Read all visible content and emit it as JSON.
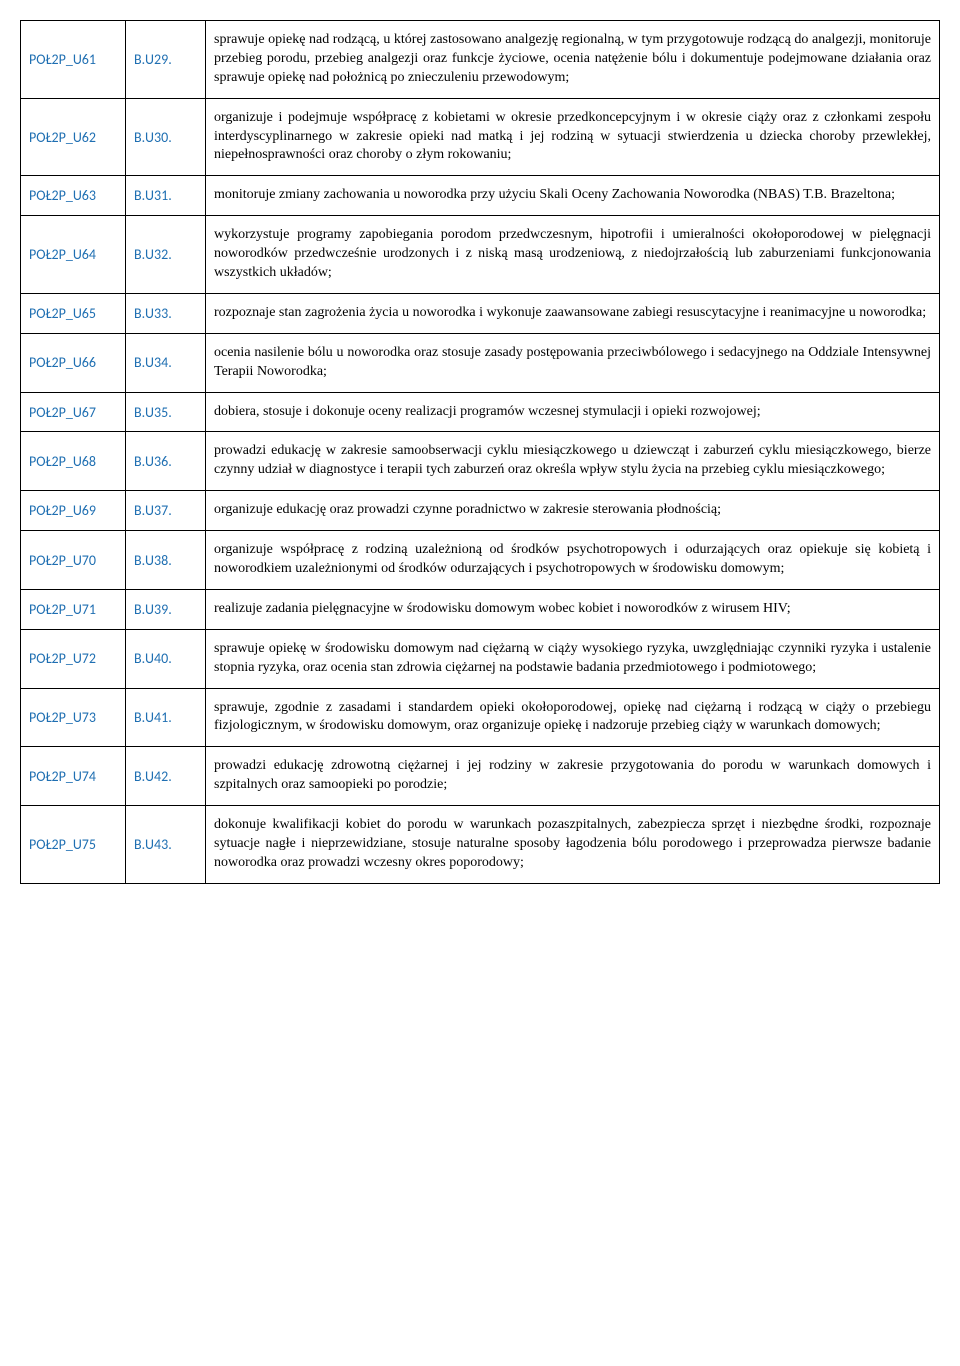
{
  "table": {
    "rows": [
      {
        "id": "POŁ2P_U61",
        "code": "B.U29.",
        "desc": "sprawuje opiekę nad rodzącą, u której zastosowano analgezję regionalną, w tym przygotowuje rodzącą do analgezji, monitoruje przebieg porodu, przebieg analgezji oraz funkcje życiowe, ocenia natężenie bólu i dokumentuje podejmowane działania oraz sprawuje opiekę nad położnicą po znieczuleniu przewodowym;"
      },
      {
        "id": "POŁ2P_U62",
        "code": "B.U30.",
        "desc": "organizuje i podejmuje współpracę z kobietami w okresie przedkoncepcyjnym i w okresie ciąży oraz z członkami zespołu interdyscyplinarnego w zakresie opieki nad matką i jej rodziną w sytuacji stwierdzenia u dziecka choroby przewlekłej, niepełnosprawności oraz choroby o złym rokowaniu;"
      },
      {
        "id": "POŁ2P_U63",
        "code": "B.U31.",
        "desc": "monitoruje zmiany zachowania u noworodka przy użyciu Skali Oceny Zachowania Noworodka (NBAS) T.B. Brazeltona;"
      },
      {
        "id": "POŁ2P_U64",
        "code": "B.U32.",
        "desc": "wykorzystuje programy zapobiegania porodom przedwczesnym, hipotrofii i umieralności okołoporodowej w pielęgnacji noworodków przedwcześnie urodzonych i z niską masą urodzeniową, z niedojrzałością lub zaburzeniami funkcjonowania wszystkich układów;"
      },
      {
        "id": "POŁ2P_U65",
        "code": "B.U33.",
        "desc": "rozpoznaje stan zagrożenia życia u noworodka i wykonuje zaawansowane zabiegi resuscytacyjne i reanimacyjne u noworodka;"
      },
      {
        "id": "POŁ2P_U66",
        "code": "B.U34.",
        "desc": "ocenia nasilenie bólu u noworodka oraz stosuje zasady postępowania przeciwbólowego i sedacyjnego na Oddziale Intensywnej Terapii Noworodka;"
      },
      {
        "id": "POŁ2P_U67",
        "code": "B.U35.",
        "desc": "dobiera, stosuje i dokonuje oceny realizacji programów wczesnej stymulacji i opieki rozwojowej;"
      },
      {
        "id": "POŁ2P_U68",
        "code": "B.U36.",
        "desc": "prowadzi edukację w zakresie samoobserwacji cyklu miesiączkowego u dziewcząt i zaburzeń cyklu miesiączkowego, bierze czynny udział w diagnostyce i terapii tych zaburzeń oraz określa wpływ stylu życia na przebieg cyklu miesiączkowego;"
      },
      {
        "id": "POŁ2P_U69",
        "code": "B.U37.",
        "desc": "organizuje edukację oraz prowadzi czynne poradnictwo w zakresie sterowania płodnością;"
      },
      {
        "id": "POŁ2P_U70",
        "code": "B.U38.",
        "desc": "organizuje współpracę z rodziną uzależnioną od środków psychotropowych i odurzających oraz opiekuje się kobietą i noworodkiem uzależnionymi od środków odurzających i psychotropowych w środowisku domowym;"
      },
      {
        "id": "POŁ2P_U71",
        "code": "B.U39.",
        "desc": "realizuje zadania pielęgnacyjne w środowisku domowym wobec kobiet i noworodków z wirusem HIV;"
      },
      {
        "id": "POŁ2P_U72",
        "code": "B.U40.",
        "desc": "sprawuje opiekę w środowisku domowym nad ciężarną w ciąży wysokiego ryzyka, uwzględniając czynniki ryzyka i ustalenie stopnia ryzyka, oraz ocenia stan zdrowia ciężarnej na podstawie badania przedmiotowego i podmiotowego;"
      },
      {
        "id": "POŁ2P_U73",
        "code": "B.U41.",
        "desc": "sprawuje, zgodnie z zasadami i standardem opieki okołoporodowej, opiekę nad ciężarną i rodzącą w ciąży o przebiegu fizjologicznym, w środowisku domowym, oraz organizuje opiekę i nadzoruje przebieg ciąży w warunkach domowych;"
      },
      {
        "id": "POŁ2P_U74",
        "code": "B.U42.",
        "desc": "prowadzi edukację zdrowotną ciężarnej i jej rodziny w zakresie przygotowania do porodu w warunkach domowych i szpitalnych oraz samoopieki po porodzie;"
      },
      {
        "id": "POŁ2P_U75",
        "code": "B.U43.",
        "desc": "dokonuje kwalifikacji kobiet do porodu w warunkach pozaszpitalnych, zabezpiecza sprzęt i niezbędne środki, rozpoznaje sytuacje nagłe i nieprzewidziane, stosuje naturalne sposoby łagodzenia bólu porodowego i przeprowadza pierwsze badanie noworodka oraz prowadzi wczesny okres poporodowy;"
      }
    ]
  }
}
